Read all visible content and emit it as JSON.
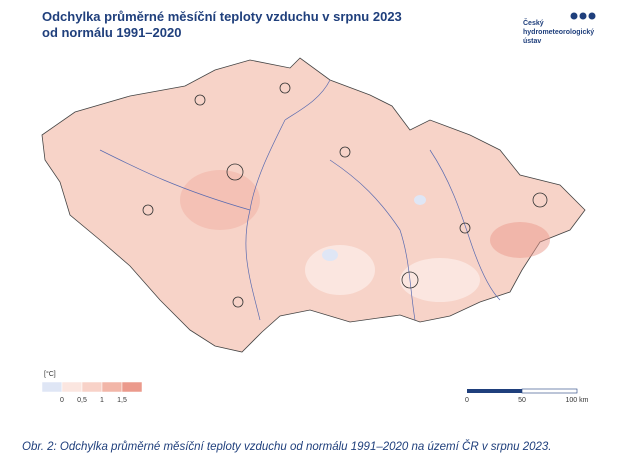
{
  "header": {
    "title_line1": "Odchylka průměrné měsíční teploty vzduchu v srpnu 2023",
    "title_line2": "od normálu 1991–2020"
  },
  "logo": {
    "lines": [
      "Český",
      "hydrometeorologický",
      "ústav"
    ]
  },
  "legend": {
    "unit": "[°C]",
    "labels": [
      "0",
      "0,5",
      "1",
      "1,5"
    ],
    "colors": [
      "#dfe6f5",
      "#fbe6e0",
      "#f8d2c8",
      "#f2b6a8",
      "#eb9a8c"
    ]
  },
  "scale_bar": {
    "labels": [
      "0",
      "50",
      "100 km"
    ]
  },
  "caption": "Obr. 2: Odchylka průměrné měsíční teploty vzduchu od normálu 1991–2020 na území ČR v srpnu 2023."
}
